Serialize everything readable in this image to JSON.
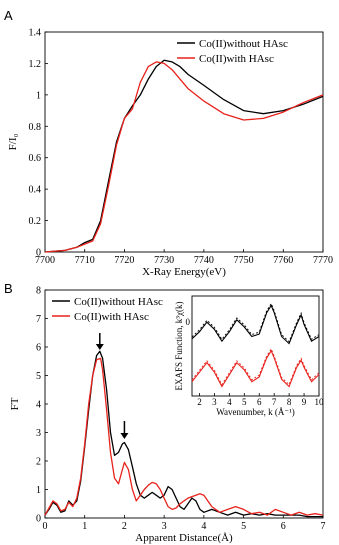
{
  "chart_data": [
    {
      "panel": "A",
      "type": "line",
      "xlabel": "X-Ray Energy(eV)",
      "ylabel": "F/I₀",
      "xlim": [
        7700,
        7770
      ],
      "ylim": [
        0,
        1.4
      ],
      "xticks": [
        7700,
        7710,
        7720,
        7730,
        7740,
        7750,
        7760,
        7770
      ],
      "yticks": [
        0,
        0.2,
        0.4,
        0.6,
        0.8,
        1,
        1.2,
        1.4
      ],
      "legend_position": "top-right",
      "series": [
        {
          "name": "Co(II)without HAsc",
          "color": "#000000",
          "x": [
            7700,
            7705,
            7708,
            7710,
            7712,
            7714,
            7716,
            7718,
            7720,
            7722,
            7724,
            7726,
            7728,
            7730,
            7732,
            7734,
            7736,
            7740,
            7745,
            7750,
            7755,
            7760,
            7765,
            7770
          ],
          "y": [
            0.0,
            0.01,
            0.03,
            0.06,
            0.08,
            0.2,
            0.45,
            0.7,
            0.85,
            0.93,
            1.0,
            1.1,
            1.18,
            1.22,
            1.21,
            1.18,
            1.13,
            1.06,
            0.97,
            0.9,
            0.88,
            0.9,
            0.94,
            0.99
          ]
        },
        {
          "name": "Co(II)with HAsc",
          "color": "#e8221c",
          "x": [
            7700,
            7705,
            7708,
            7710,
            7712,
            7714,
            7716,
            7718,
            7720,
            7722,
            7724,
            7726,
            7728,
            7730,
            7732,
            7734,
            7736,
            7740,
            7745,
            7750,
            7755,
            7760,
            7765,
            7770
          ],
          "y": [
            0.0,
            0.01,
            0.03,
            0.05,
            0.07,
            0.18,
            0.42,
            0.68,
            0.85,
            0.91,
            1.08,
            1.18,
            1.21,
            1.2,
            1.16,
            1.1,
            1.04,
            0.96,
            0.88,
            0.84,
            0.85,
            0.89,
            0.95,
            1.0
          ]
        }
      ]
    },
    {
      "panel": "B",
      "type": "line",
      "xlabel": "Apparent Distance(Å)",
      "ylabel": "FT",
      "xlim": [
        0,
        7
      ],
      "ylim": [
        0,
        8
      ],
      "xticks": [
        0,
        1,
        2,
        3,
        4,
        5,
        6,
        7
      ],
      "yticks": [
        0,
        1,
        2,
        3,
        4,
        5,
        6,
        7,
        8
      ],
      "legend_position": "top-left",
      "arrows_at_x": [
        1.38,
        2.0
      ],
      "series": [
        {
          "name": "Co(II)without HAsc",
          "color": "#000000",
          "x": [
            0,
            0.1,
            0.2,
            0.3,
            0.4,
            0.5,
            0.6,
            0.7,
            0.8,
            0.9,
            1.0,
            1.1,
            1.2,
            1.3,
            1.38,
            1.45,
            1.55,
            1.65,
            1.75,
            1.85,
            1.95,
            2.0,
            2.1,
            2.2,
            2.3,
            2.4,
            2.5,
            2.6,
            2.7,
            2.8,
            2.9,
            3.0,
            3.1,
            3.2,
            3.3,
            3.4,
            3.5,
            3.6,
            3.7,
            3.8,
            3.9,
            4.0,
            4.2,
            4.4,
            4.6,
            4.8,
            5.0,
            5.2,
            5.4,
            5.6,
            5.8,
            6.0,
            6.2,
            6.4,
            6.6,
            6.8,
            7.0
          ],
          "y": [
            0.1,
            0.3,
            0.55,
            0.45,
            0.2,
            0.25,
            0.6,
            0.45,
            0.6,
            1.3,
            2.5,
            3.8,
            5.0,
            5.7,
            5.85,
            5.6,
            4.5,
            3.0,
            2.2,
            2.3,
            2.6,
            2.65,
            2.4,
            1.8,
            1.2,
            0.8,
            0.7,
            0.8,
            0.9,
            0.8,
            0.7,
            0.8,
            1.1,
            1.0,
            0.7,
            0.4,
            0.3,
            0.5,
            0.7,
            0.6,
            0.3,
            0.2,
            0.3,
            0.2,
            0.1,
            0.2,
            0.1,
            0.15,
            0.1,
            0.15,
            0.1,
            0.1,
            0.1,
            0.1,
            0.05,
            0.05,
            0.05
          ]
        },
        {
          "name": "Co(II)with HAsc",
          "color": "#e8221c",
          "x": [
            0,
            0.1,
            0.2,
            0.3,
            0.4,
            0.5,
            0.6,
            0.7,
            0.8,
            0.9,
            1.0,
            1.1,
            1.2,
            1.3,
            1.4,
            1.45,
            1.55,
            1.65,
            1.75,
            1.85,
            1.95,
            2.0,
            2.1,
            2.2,
            2.3,
            2.4,
            2.5,
            2.6,
            2.7,
            2.8,
            2.9,
            3.0,
            3.1,
            3.2,
            3.3,
            3.4,
            3.5,
            3.6,
            3.7,
            3.8,
            3.9,
            4.0,
            4.1,
            4.2,
            4.4,
            4.6,
            4.8,
            5.0,
            5.2,
            5.4,
            5.6,
            5.8,
            6.0,
            6.2,
            6.4,
            6.6,
            6.8,
            7.0
          ],
          "y": [
            0.1,
            0.35,
            0.6,
            0.5,
            0.25,
            0.3,
            0.55,
            0.4,
            0.7,
            1.4,
            2.6,
            4.0,
            5.0,
            5.55,
            5.6,
            5.2,
            3.8,
            2.3,
            1.4,
            1.2,
            1.7,
            1.95,
            1.7,
            1.0,
            0.6,
            0.8,
            1.0,
            1.15,
            1.25,
            1.2,
            1.0,
            0.7,
            0.4,
            0.3,
            0.35,
            0.5,
            0.6,
            0.7,
            0.75,
            0.8,
            0.85,
            0.8,
            0.6,
            0.4,
            0.2,
            0.3,
            0.4,
            0.3,
            0.15,
            0.2,
            0.1,
            0.3,
            0.2,
            0.1,
            0.2,
            0.1,
            0.15,
            0.1
          ]
        }
      ],
      "inset": {
        "type": "line",
        "xlabel": "Wavenumber, k (Å⁻¹)",
        "ylabel": "EXAFS Function, k³χ(k)",
        "xlim": [
          1.5,
          10
        ],
        "xticks": [
          2,
          3,
          4,
          5,
          6,
          7,
          8,
          9,
          10
        ],
        "series": [
          {
            "name": "Co(II)without HAsc",
            "color": "#000000",
            "x": [
              1.5,
              2.0,
              2.5,
              3.0,
              3.5,
              4.0,
              4.5,
              5.0,
              5.5,
              6.0,
              6.5,
              6.8,
              7.0,
              7.5,
              8.0,
              8.5,
              8.8,
              9.0,
              9.5,
              10.0
            ],
            "y": [
              0.2,
              0.5,
              0.9,
              0.6,
              0.1,
              0.5,
              1.0,
              0.7,
              0.3,
              0.4,
              1.3,
              1.6,
              1.3,
              0.3,
              0.0,
              0.8,
              1.2,
              0.8,
              0.1,
              0.3
            ]
          },
          {
            "name": "Co(II)with HAsc",
            "color": "#e8221c",
            "x": [
              1.5,
              2.0,
              2.5,
              3.0,
              3.5,
              4.0,
              4.5,
              5.0,
              5.5,
              6.0,
              6.5,
              6.8,
              7.0,
              7.5,
              8.0,
              8.5,
              8.8,
              9.0,
              9.5,
              10.0
            ],
            "y": [
              -1.6,
              -1.2,
              -0.8,
              -1.2,
              -1.8,
              -1.3,
              -0.8,
              -1.1,
              -1.6,
              -1.4,
              -0.6,
              -0.3,
              -0.6,
              -1.5,
              -1.8,
              -1.0,
              -0.7,
              -1.0,
              -1.6,
              -1.3
            ]
          }
        ],
        "yzero_tick_label": "0"
      }
    }
  ]
}
